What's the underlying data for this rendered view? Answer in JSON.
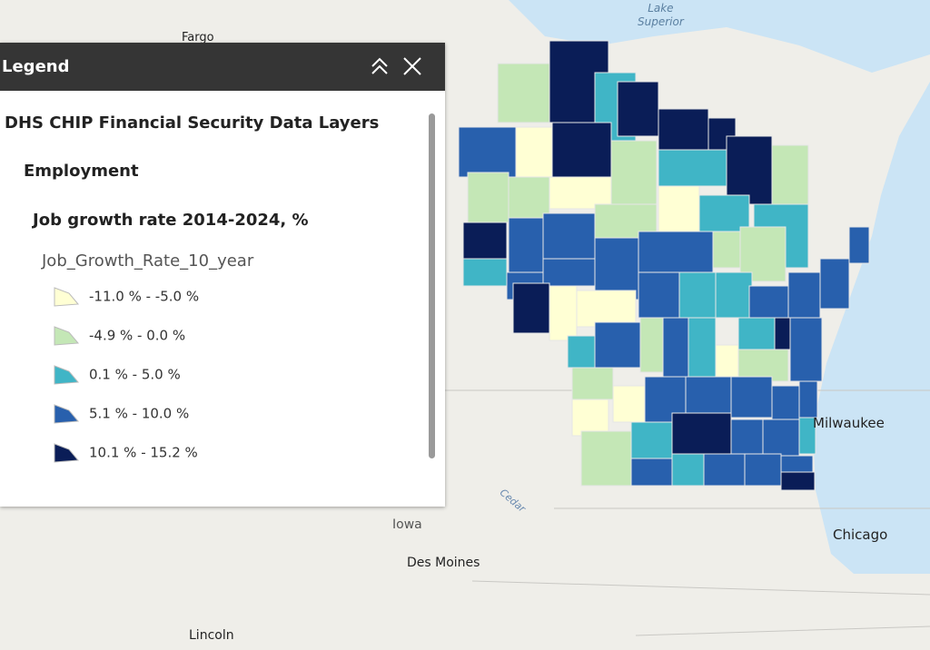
{
  "legend": {
    "header": "Legend",
    "layer_group": "DHS CHIP Financial Security Data Layers",
    "subgroup": "Employment",
    "layer": "Job growth rate 2014-2024, %",
    "field": "Job_Growth_Rate_10_year",
    "classes": [
      {
        "label": "-11.0 % - -5.0 %",
        "color": "#ffffd4"
      },
      {
        "label": "-4.9 % - 0.0 %",
        "color": "#c4e7b6"
      },
      {
        "label": "0.1 % - 5.0 %",
        "color": "#40b5c6"
      },
      {
        "label": "5.1 % - 10.0 %",
        "color": "#2860ad"
      },
      {
        "label": "10.1 % - 15.2 %",
        "color": "#0a1d57"
      }
    ]
  },
  "map": {
    "lake_superior": [
      "Lake",
      "Superior"
    ],
    "places": [
      "Fargo",
      "Iowa",
      "Des Moines",
      "Milwaukee",
      "Chicago",
      "Lincoln",
      "Cedar"
    ]
  }
}
